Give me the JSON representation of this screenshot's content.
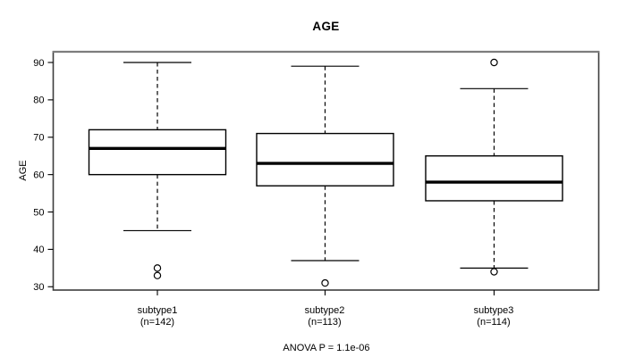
{
  "chart_data": {
    "type": "boxplot",
    "title": "AGE",
    "ylabel": "AGE",
    "xlabel": "",
    "yticks": [
      30,
      40,
      50,
      60,
      70,
      80,
      90
    ],
    "ylim": [
      29,
      93
    ],
    "grid": false,
    "annotation": "ANOVA P = 1.1e-06",
    "groups": [
      {
        "label": "subtype1",
        "sublabel": "(n=142)",
        "n": 142,
        "whisker_low": 45,
        "q1": 60,
        "median": 67,
        "q3": 72,
        "whisker_high": 90,
        "outliers": [
          35,
          33
        ]
      },
      {
        "label": "subtype2",
        "sublabel": "(n=113)",
        "n": 113,
        "whisker_low": 37,
        "q1": 57,
        "median": 63,
        "q3": 71,
        "whisker_high": 89,
        "outliers": [
          31
        ]
      },
      {
        "label": "subtype3",
        "sublabel": "(n=114)",
        "n": 114,
        "whisker_low": 35,
        "q1": 53,
        "median": 58,
        "q3": 65,
        "whisker_high": 83,
        "outliers": [
          90,
          34
        ]
      }
    ],
    "colors": {
      "stroke": "#000000",
      "background": "#ffffff",
      "box_fill": "#ffffff",
      "border": "#3d3d3d",
      "border_top": "#7d7d7d",
      "text": "#000000"
    }
  }
}
